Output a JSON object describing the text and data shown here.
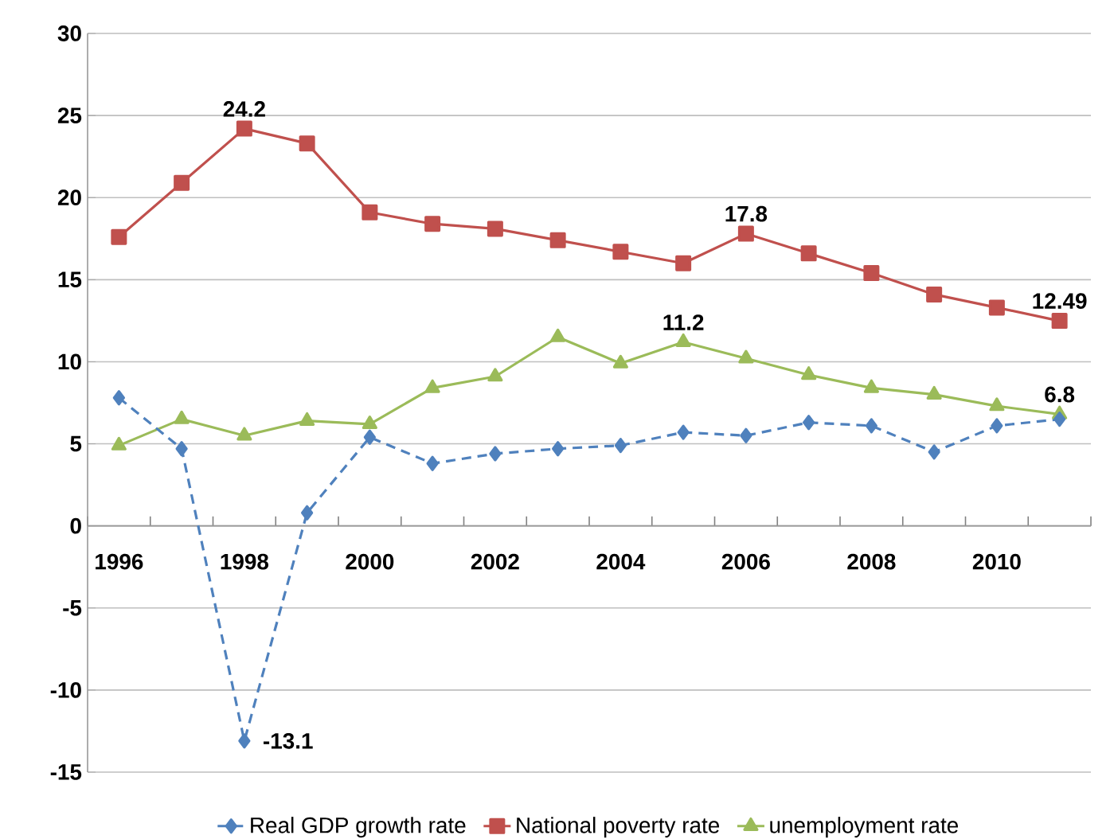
{
  "chart_data": {
    "type": "line",
    "categories": [
      "1996",
      null,
      "1998",
      null,
      "2000",
      null,
      "2002",
      null,
      "2004",
      null,
      "2006",
      null,
      "2008",
      null,
      "2010",
      null
    ],
    "series": [
      {
        "name": "Real GDP growth rate",
        "color": "#4f81bd",
        "marker": "diamond",
        "line_style": "dashed",
        "values": [
          7.8,
          4.7,
          -13.1,
          0.8,
          5.4,
          3.8,
          4.4,
          4.7,
          4.9,
          5.7,
          5.5,
          6.3,
          6.1,
          4.5,
          6.1,
          6.5
        ],
        "value_labels": [
          null,
          null,
          "-13.1",
          null,
          null,
          null,
          null,
          null,
          null,
          null,
          null,
          null,
          null,
          null,
          null,
          null
        ]
      },
      {
        "name": "National poverty rate",
        "color": "#c0504d",
        "marker": "square",
        "line_style": "solid",
        "values": [
          17.6,
          20.9,
          24.2,
          23.3,
          19.1,
          18.4,
          18.1,
          17.4,
          16.7,
          16.0,
          17.8,
          16.6,
          15.4,
          14.1,
          13.3,
          12.49
        ],
        "value_labels": [
          null,
          null,
          "24.2",
          null,
          null,
          null,
          null,
          null,
          null,
          null,
          "17.8",
          null,
          null,
          null,
          null,
          "12.49"
        ]
      },
      {
        "name": "unemployment rate",
        "color": "#9bbb59",
        "marker": "triangle",
        "line_style": "solid",
        "values": [
          4.9,
          6.5,
          5.5,
          6.4,
          6.2,
          8.4,
          9.1,
          11.5,
          9.9,
          11.2,
          10.2,
          9.2,
          8.4,
          8.0,
          7.3,
          6.8
        ],
        "value_labels": [
          null,
          null,
          null,
          null,
          null,
          null,
          null,
          null,
          null,
          "11.2",
          null,
          null,
          null,
          null,
          null,
          "6.8"
        ]
      }
    ],
    "ylim": [
      -15,
      30
    ],
    "yticks": [
      -15,
      -10,
      -5,
      0,
      5,
      10,
      15,
      20,
      25,
      30
    ],
    "grid": "y",
    "legend": "bottom"
  }
}
